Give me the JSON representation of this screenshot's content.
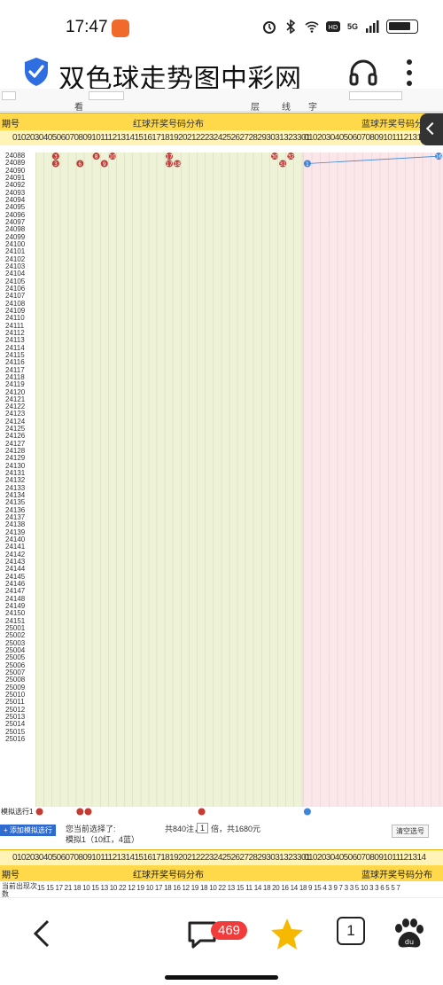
{
  "status_bar": {
    "time": "17:47",
    "network": "5G"
  },
  "site": {
    "title": "双色球走势图中彩网"
  },
  "toolbar": {
    "items": [
      "看",
      "层",
      "线",
      "字"
    ]
  },
  "header": {
    "period_label": "期号",
    "red_title": "红球开奖号码分布",
    "blue_title": "蓝球开奖号码分布",
    "red_numbers": "01020304050607080910111213141516171819202122232425262728293031323301",
    "blue_numbers": "0102030405060708091011121314"
  },
  "colors": {
    "red_ball": "#c43b33",
    "green_ball": "#2a7d2a",
    "blue_ball": "#3f85d8",
    "header_bg": "#ffd94a"
  },
  "periods": [
    "24088",
    "24089",
    "24090",
    "24091",
    "24092",
    "24093",
    "24094",
    "24095",
    "24096",
    "24097",
    "24098",
    "24099",
    "24100",
    "24101",
    "24102",
    "24103",
    "24104",
    "24105",
    "24106",
    "24107",
    "24108",
    "24109",
    "24110",
    "24111",
    "24112",
    "24113",
    "24114",
    "24115",
    "24116",
    "24117",
    "24118",
    "24119",
    "24120",
    "24121",
    "24122",
    "24123",
    "24124",
    "24125",
    "24126",
    "24127",
    "24128",
    "24129",
    "24130",
    "24131",
    "24132",
    "24133",
    "24134",
    "24135",
    "24136",
    "24137",
    "24138",
    "24139",
    "24140",
    "24141",
    "24142",
    "24143",
    "24144",
    "24145",
    "24146",
    "24147",
    "24148",
    "24149",
    "24150",
    "24151",
    "25001",
    "25002",
    "25003",
    "25004",
    "25005",
    "25006",
    "25007",
    "25008",
    "25009",
    "25010",
    "25011",
    "25012",
    "25013",
    "25014",
    "25015",
    "25016"
  ],
  "draws": [
    {
      "red": [
        3,
        8,
        10,
        17,
        30,
        32
      ],
      "blue": 16
    },
    {
      "red": [
        3,
        6,
        9,
        17,
        18,
        31
      ],
      "blue": 1
    }
  ],
  "sim_row": {
    "label": "模拟选行1",
    "balls_red": [
      1,
      6,
      7,
      21
    ],
    "ball_blue": 1
  },
  "footer": {
    "add_button": "+ 添加模拟选行",
    "selected_label": "您当前选择了:",
    "sim_info": "模拟1（10红，4蓝）",
    "total_prefix": "共840注，",
    "multiplier": "1",
    "total_suffix": "倍，共1680元",
    "clear_button": "清空选号"
  },
  "appear": {
    "label": "当前出现次数",
    "values": "15 15 17 21 18 10 15 13 10 22 12 19 10 17 18 16 12 19 18 10 22 13 15 11 14 18 20 16 14 18 9 15 4 3 9 7 3 3 5 10 3 3 6 5 5 7"
  },
  "bottom_nav": {
    "message_count": "469",
    "tab_count": "1"
  }
}
